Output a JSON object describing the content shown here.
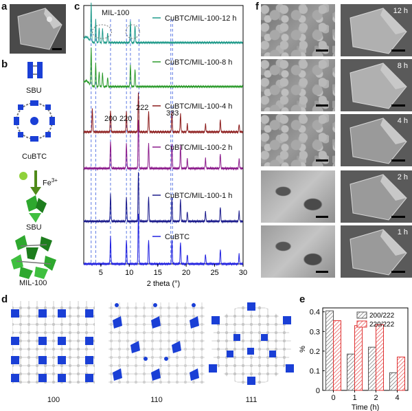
{
  "panels": {
    "a": "a",
    "b": "b",
    "c": "c",
    "d": "d",
    "e": "e",
    "f": "f"
  },
  "scheme_b": {
    "sbu_top": "SBU",
    "cubtc": "CuBTC",
    "fe_label": "Fe",
    "fe_sup": "3+",
    "sbu_bottom": "SBU",
    "mil100": "MIL-100"
  },
  "xrd": {
    "traces": [
      {
        "label": "CuBTC/MIL-100-12 h",
        "color": "#1f9a8a"
      },
      {
        "label": "CuBTC/MIL-100-8 h",
        "color": "#2a9a2a"
      },
      {
        "label": "CuBTC/MIL-100-4 h",
        "color": "#8b1a1a"
      },
      {
        "label": "CuBTC/MIL-100-2 h",
        "color": "#8b1a8b"
      },
      {
        "label": "CuBTC/MIL-100-1 h",
        "color": "#1a1a8b"
      },
      {
        "label": "CuBTC",
        "color": "#2020e0"
      }
    ],
    "annotation_mil": "MIL-100",
    "peak_200": "200",
    "peak_220": "220",
    "peak_222": "222",
    "peak_333": "333",
    "xlabel": "2 theta (°)",
    "xticks": [
      "5",
      "10",
      "15",
      "20",
      "25",
      "30"
    ]
  },
  "structures_d": {
    "labels": [
      "100",
      "110",
      "111"
    ]
  },
  "sem_f": {
    "times": [
      "12 h",
      "8 h",
      "4 h",
      "2 h",
      "1 h"
    ]
  },
  "chart_data": {
    "type": "bar",
    "categories": [
      "0",
      "1",
      "2",
      "4"
    ],
    "series": [
      {
        "name": "200/222",
        "values": [
          0.405,
          0.185,
          0.22,
          0.09
        ],
        "color": "#555555"
      },
      {
        "name": "220/222",
        "values": [
          0.355,
          0.33,
          0.335,
          0.17
        ],
        "color": "#e03030"
      }
    ],
    "xlabel": "Time (h)",
    "ylabel": "%",
    "ylim": [
      0,
      0.42
    ],
    "yticks": [
      "0",
      "0.1",
      "0.2",
      "0.3",
      "0.4"
    ],
    "legend": "top-right"
  }
}
